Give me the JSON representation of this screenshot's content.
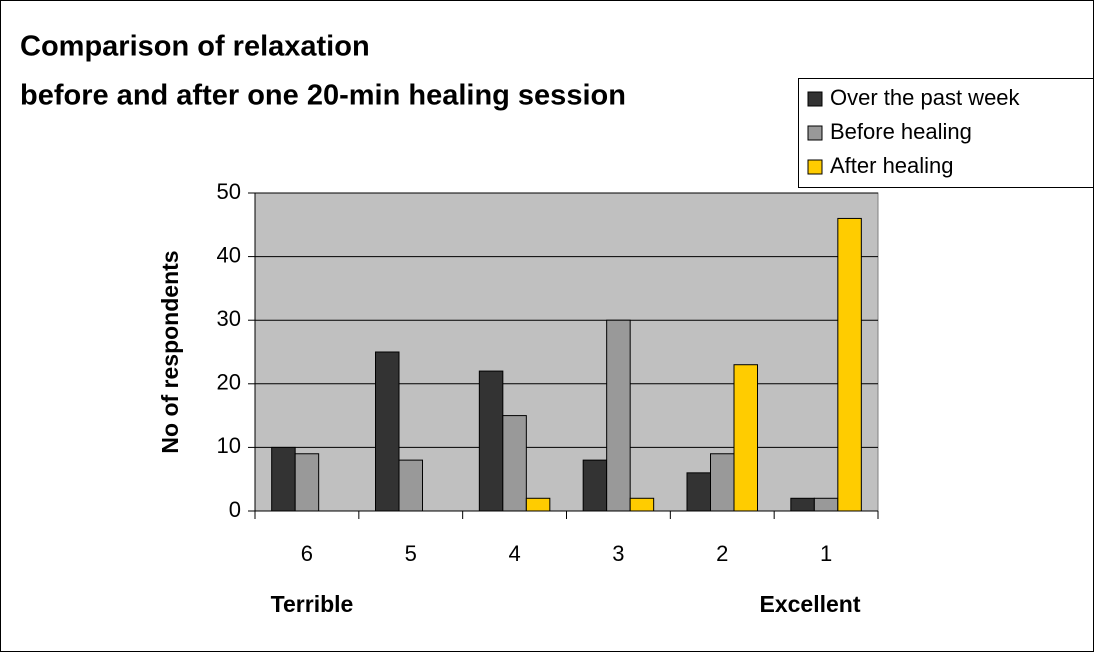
{
  "chart_data": {
    "type": "bar",
    "title": [
      "Comparison of relaxation",
      "before and after one 20-min healing session"
    ],
    "ylabel": "No of respondents",
    "annotations": [
      "Terrible",
      "Excellent"
    ],
    "categories": [
      "6",
      "5",
      "4",
      "3",
      "2",
      "1"
    ],
    "series": [
      {
        "name": "Over the past week",
        "color": "#333333",
        "values": [
          10,
          25,
          22,
          8,
          6,
          2
        ]
      },
      {
        "name": "Before healing",
        "color": "#999999",
        "values": [
          9,
          8,
          15,
          30,
          9,
          2
        ]
      },
      {
        "name": "After healing",
        "color": "#ffcc00",
        "values": [
          0,
          0,
          2,
          2,
          23,
          46
        ]
      }
    ],
    "ylim": [
      0,
      50
    ],
    "yticks": [
      0,
      10,
      20,
      30,
      40,
      50
    ],
    "grid": true,
    "legend": "top-right",
    "plot_background": "#c0c0c0"
  }
}
